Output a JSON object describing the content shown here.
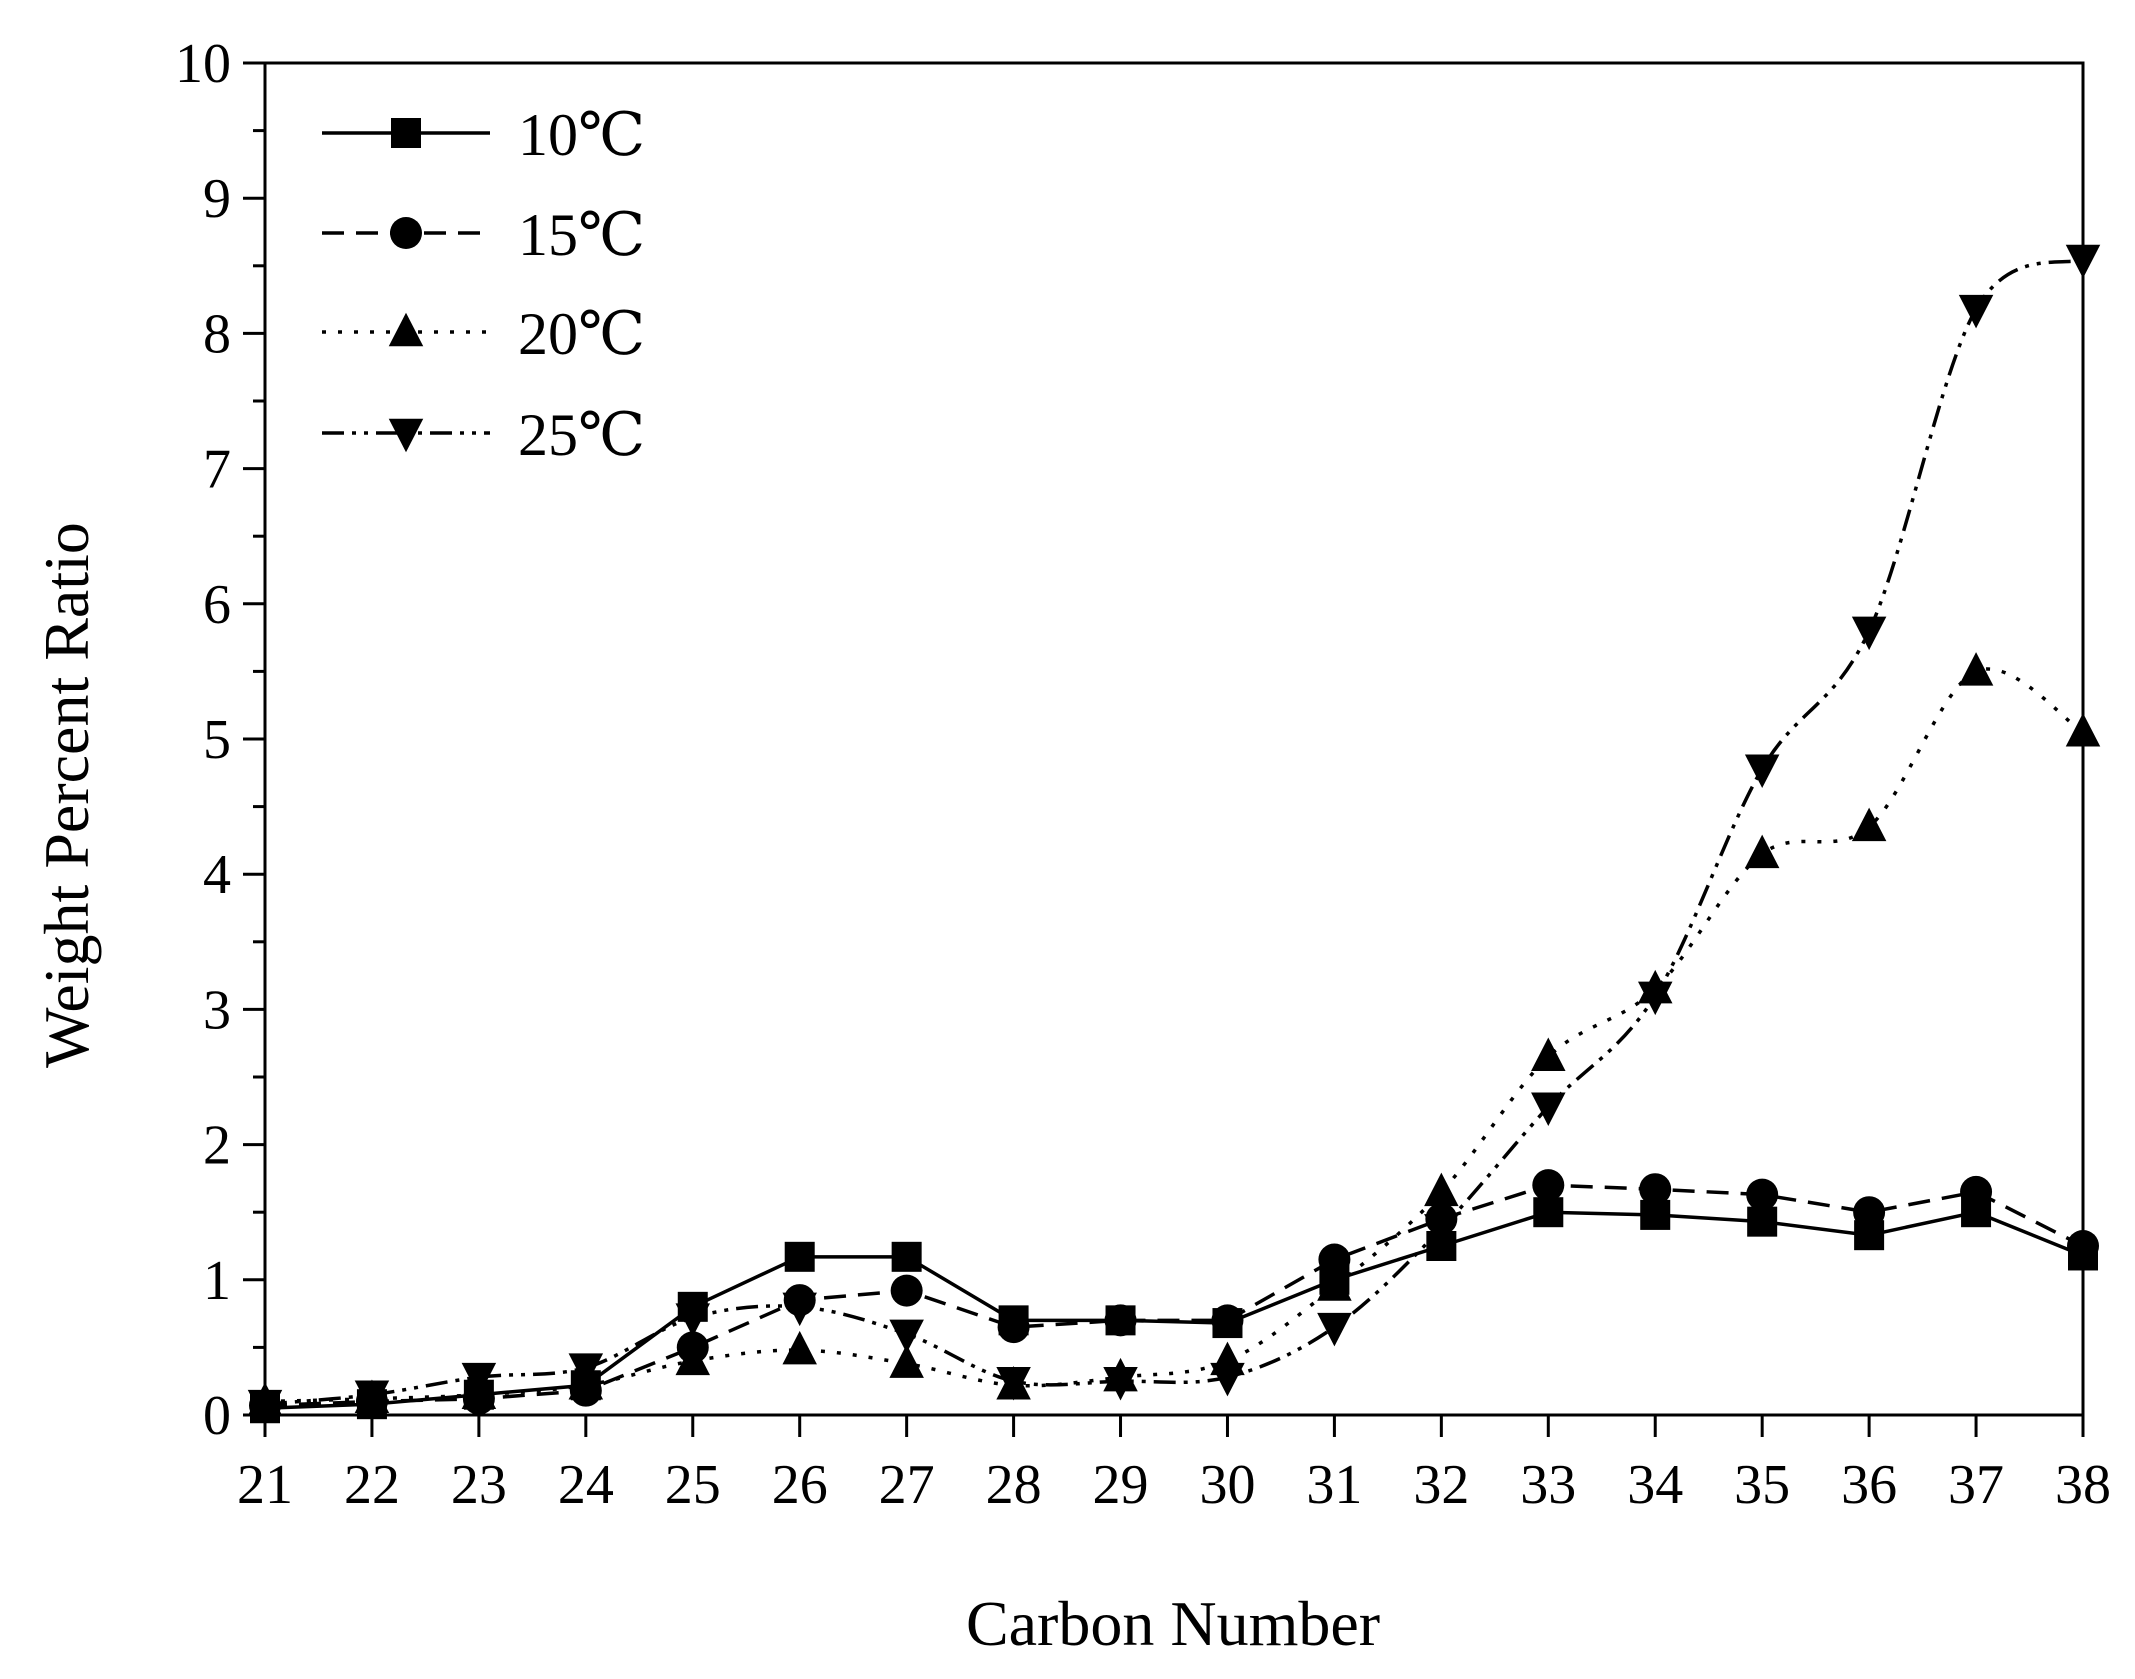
{
  "chart_data": {
    "type": "line",
    "xlabel": "Carbon Number",
    "ylabel": "Weight Percent Ratio",
    "x": [
      21,
      22,
      23,
      24,
      25,
      26,
      27,
      28,
      29,
      30,
      31,
      32,
      33,
      34,
      35,
      36,
      37,
      38
    ],
    "xlim": [
      21,
      38
    ],
    "ylim": [
      0,
      10
    ],
    "y_ticks": [
      0,
      1,
      2,
      3,
      4,
      5,
      6,
      7,
      8,
      9,
      10
    ],
    "x_ticks": [
      21,
      22,
      23,
      24,
      25,
      26,
      27,
      28,
      29,
      30,
      31,
      32,
      33,
      34,
      35,
      36,
      37,
      38
    ],
    "legend_position": "top-left",
    "grid": false,
    "series": [
      {
        "name": "10℃",
        "marker": "square",
        "line": "solid",
        "values": [
          0.05,
          0.08,
          0.15,
          0.22,
          0.8,
          1.17,
          1.17,
          0.7,
          0.7,
          0.68,
          1.0,
          1.25,
          1.5,
          1.48,
          1.43,
          1.33,
          1.5,
          1.18
        ]
      },
      {
        "name": "15℃",
        "marker": "circle",
        "line": "dashed",
        "values": [
          0.07,
          0.1,
          0.12,
          0.18,
          0.5,
          0.85,
          0.92,
          0.65,
          0.7,
          0.7,
          1.15,
          1.45,
          1.7,
          1.67,
          1.63,
          1.5,
          1.65,
          1.25
        ]
      },
      {
        "name": "20℃",
        "marker": "triangle-up",
        "line": "dotted",
        "values": [
          0.1,
          0.12,
          0.15,
          0.22,
          0.4,
          0.48,
          0.38,
          0.22,
          0.28,
          0.4,
          0.95,
          1.65,
          2.65,
          3.15,
          4.15,
          4.35,
          5.5,
          5.05
        ]
      },
      {
        "name": "25℃",
        "marker": "triangle-down",
        "line": "dashdotdot",
        "values": [
          0.08,
          0.15,
          0.28,
          0.35,
          0.72,
          0.8,
          0.6,
          0.25,
          0.25,
          0.28,
          0.65,
          1.38,
          2.28,
          3.1,
          4.78,
          5.8,
          8.18,
          8.55
        ]
      }
    ]
  }
}
